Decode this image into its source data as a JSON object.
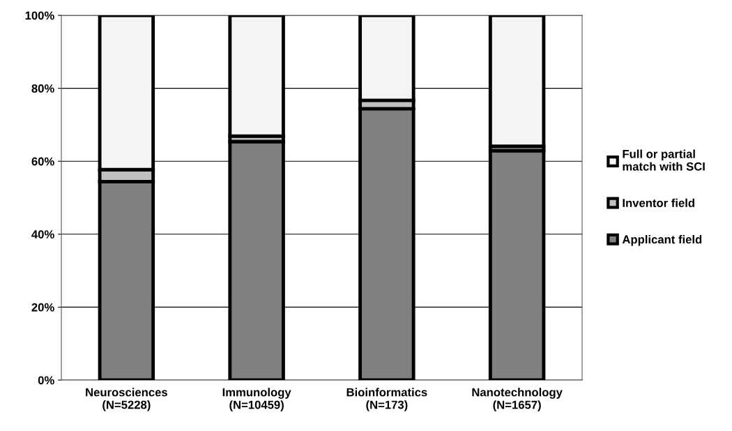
{
  "chart_data": {
    "type": "bar",
    "stacked": true,
    "categories": [
      "Neurosciences\n(N=5228)",
      "Immunology\n(N=10459)",
      "Bioinformatics\n(N=173)",
      "Nanotechnology\n(N=1657)"
    ],
    "series": [
      {
        "name": "Applicant field",
        "color": "#808080",
        "values": [
          54.4,
          65.4,
          74.4,
          62.9
        ]
      },
      {
        "name": "Inventor field",
        "color": "#c0c0c0",
        "values": [
          3.3,
          1.5,
          2.3,
          1.2
        ]
      },
      {
        "name": "Full or partial\nmatch with SCI",
        "color": "#f4f4f4",
        "values": [
          42.3,
          33.1,
          23.3,
          35.9
        ]
      }
    ],
    "ylim": [
      0,
      100
    ],
    "yticks": [
      {
        "value": 0,
        "label": "0%"
      },
      {
        "value": 20,
        "label": "20%"
      },
      {
        "value": 40,
        "label": "40%"
      },
      {
        "value": 60,
        "label": "60%"
      },
      {
        "value": 80,
        "label": "80%"
      },
      {
        "value": 100,
        "label": "100%"
      }
    ],
    "grid": "y",
    "legend": "right"
  }
}
